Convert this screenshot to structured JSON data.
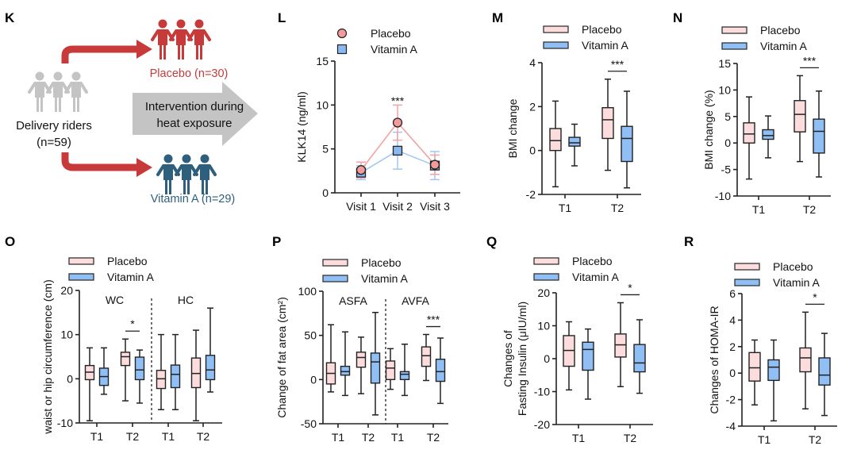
{
  "colors": {
    "placebo_fill": "#fcdcdc",
    "vitamin_fill": "#8fbff5",
    "placebo_line": "#f4a3a3",
    "vitamin_line": "#9fc8f4",
    "red": "#c83a3a",
    "blue": "#2e5f7d",
    "gray": "#c4c4c4"
  },
  "panel_k": {
    "letter": "K",
    "source_label": "Delivery riders",
    "source_n": "(n=59)",
    "placebo_label": "Placebo (n=30)",
    "vitamin_label": "Vitamin A (n=29)",
    "intervention_line1": "Intervention during",
    "intervention_line2": "heat exposure"
  },
  "chart_data": [
    {
      "id": "L",
      "letter": "L",
      "type": "line",
      "ylabel": "KLK14 (ng/ml)",
      "ylim": [
        0,
        15
      ],
      "yticks": [
        0,
        5,
        10,
        15
      ],
      "categories": [
        "Visit 1",
        "Visit 2",
        "Visit 3"
      ],
      "series": [
        {
          "name": "Placebo",
          "values": [
            2.6,
            8.0,
            3.2
          ],
          "errors": [
            0.9,
            2.0,
            1.1
          ]
        },
        {
          "name": "Vitamin A",
          "values": [
            2.3,
            4.8,
            3.1
          ],
          "errors": [
            0.8,
            2.1,
            1.6
          ]
        }
      ],
      "significance": [
        {
          "category": "Visit 2",
          "label": "***"
        }
      ]
    },
    {
      "id": "M",
      "letter": "M",
      "type": "box",
      "ylabel": "BMI change",
      "ylim": [
        -2,
        4
      ],
      "yticks": [
        -2,
        0,
        2,
        4
      ],
      "categories": [
        "T1",
        "T2"
      ],
      "series_names": [
        "Placebo",
        "Vitamin A"
      ],
      "boxes": [
        [
          [
            -1.65,
            0,
            0.45,
            1.0,
            2.25
          ],
          [
            -0.7,
            0.2,
            0.35,
            0.6,
            1.2
          ]
        ],
        [
          [
            -0.9,
            0.55,
            1.4,
            1.95,
            3.25
          ],
          [
            -1.7,
            -0.5,
            0.55,
            1.1,
            2.7
          ]
        ]
      ],
      "significance": [
        {
          "category": "T2",
          "label": "***"
        }
      ]
    },
    {
      "id": "N",
      "letter": "N",
      "type": "box",
      "ylabel": "BMI change (%)",
      "ylim": [
        -10,
        15
      ],
      "yticks": [
        -10,
        -5,
        0,
        5,
        10,
        15
      ],
      "categories": [
        "T1",
        "T2"
      ],
      "series_names": [
        "Placebo",
        "Vitamin A"
      ],
      "boxes": [
        [
          [
            -6.8,
            0,
            1.7,
            3.8,
            8.7
          ],
          [
            -2.8,
            0.7,
            1.4,
            2.5,
            5.1
          ]
        ],
        [
          [
            -3.5,
            2.1,
            5.4,
            8.0,
            12.7
          ],
          [
            -6.4,
            -1.9,
            2.2,
            4.5,
            9.8
          ]
        ]
      ],
      "significance": [
        {
          "category": "T2",
          "label": "***"
        }
      ]
    },
    {
      "id": "O",
      "letter": "O",
      "type": "box",
      "ylabel": "waist or hip circumference (cm)",
      "ylim": [
        -10,
        20
      ],
      "yticks": [
        -10,
        0,
        10,
        20
      ],
      "sections": [
        "WC",
        "HC"
      ],
      "categories": [
        "T1",
        "T2",
        "T1",
        "T2"
      ],
      "series_names": [
        "Placebo",
        "Vitamin A"
      ],
      "boxes": [
        [
          [
            -9.5,
            -0.2,
            1.5,
            3,
            7
          ],
          [
            -3.5,
            -1.5,
            0.5,
            2.4,
            7
          ]
        ],
        [
          [
            -5,
            3,
            5,
            6,
            9
          ],
          [
            -5.5,
            -0.2,
            2,
            4.9,
            6.5
          ]
        ],
        [
          [
            -7,
            -2.2,
            0,
            1.9,
            10
          ],
          [
            -7,
            -2,
            1,
            3.1,
            10
          ]
        ],
        [
          [
            -9.5,
            -2,
            1.2,
            4.7,
            11
          ],
          [
            -3,
            -0.2,
            2,
            5.3,
            16
          ]
        ]
      ],
      "significance": [
        {
          "category_index": 1,
          "label": "*"
        }
      ]
    },
    {
      "id": "P",
      "letter": "P",
      "type": "box",
      "ylabel": "Change of fat area (cm²)",
      "ylim": [
        -50,
        100
      ],
      "yticks": [
        -50,
        0,
        50,
        100
      ],
      "sections": [
        "ASFA",
        "AVFA"
      ],
      "categories": [
        "T1",
        "T2",
        "T1",
        "T2"
      ],
      "series_names": [
        "Placebo",
        "Vitamin A"
      ],
      "boxes": [
        [
          [
            -14,
            -5,
            7,
            19,
            62
          ],
          [
            -18,
            5,
            9,
            15,
            54
          ]
        ],
        [
          [
            -16,
            14,
            25,
            31,
            48
          ],
          [
            -40,
            -4,
            20,
            30,
            76
          ]
        ],
        [
          [
            -11,
            0,
            13,
            21,
            35
          ],
          [
            -18,
            0,
            6,
            9,
            40
          ]
        ],
        [
          [
            -1,
            15,
            27,
            37,
            51
          ],
          [
            -27,
            -2,
            9,
            23,
            47
          ]
        ]
      ],
      "significance": [
        {
          "category_index": 3,
          "label": "***"
        }
      ]
    },
    {
      "id": "Q",
      "letter": "Q",
      "type": "box",
      "ylabel": [
        "Changes of",
        "Fasting Insulin (μIU/ml)"
      ],
      "ylim": [
        -20,
        20
      ],
      "yticks": [
        -20,
        -10,
        0,
        10,
        20
      ],
      "categories": [
        "T1",
        "T2"
      ],
      "series_names": [
        "Placebo",
        "Vitamin A"
      ],
      "boxes": [
        [
          [
            -9.5,
            -2.3,
            2.5,
            7,
            11.2
          ],
          [
            -12.3,
            -3.5,
            2.8,
            5,
            9
          ]
        ],
        [
          [
            -8.5,
            0.5,
            4.2,
            7.5,
            17
          ],
          [
            -10.5,
            -4,
            -1.3,
            4.3,
            11.8
          ]
        ]
      ],
      "significance": [
        {
          "category": "T2",
          "label": "*"
        }
      ]
    },
    {
      "id": "R",
      "letter": "R",
      "type": "box",
      "ylabel": "Changes of HOMA-IR",
      "ylim": [
        -4,
        6
      ],
      "yticks": [
        -4,
        -2,
        0,
        2,
        4,
        6
      ],
      "categories": [
        "T1",
        "T2"
      ],
      "series_names": [
        "Placebo",
        "Vitamin A"
      ],
      "boxes": [
        [
          [
            -2.4,
            -0.6,
            0.4,
            1.55,
            2.5
          ],
          [
            -3.6,
            -0.55,
            0.45,
            1.0,
            2.5
          ]
        ],
        [
          [
            -2.7,
            0.1,
            1.15,
            1.9,
            4.6
          ],
          [
            -3.2,
            -0.9,
            -0.15,
            1.15,
            3.0
          ]
        ]
      ],
      "significance": [
        {
          "category": "T2",
          "label": "*"
        }
      ]
    }
  ]
}
